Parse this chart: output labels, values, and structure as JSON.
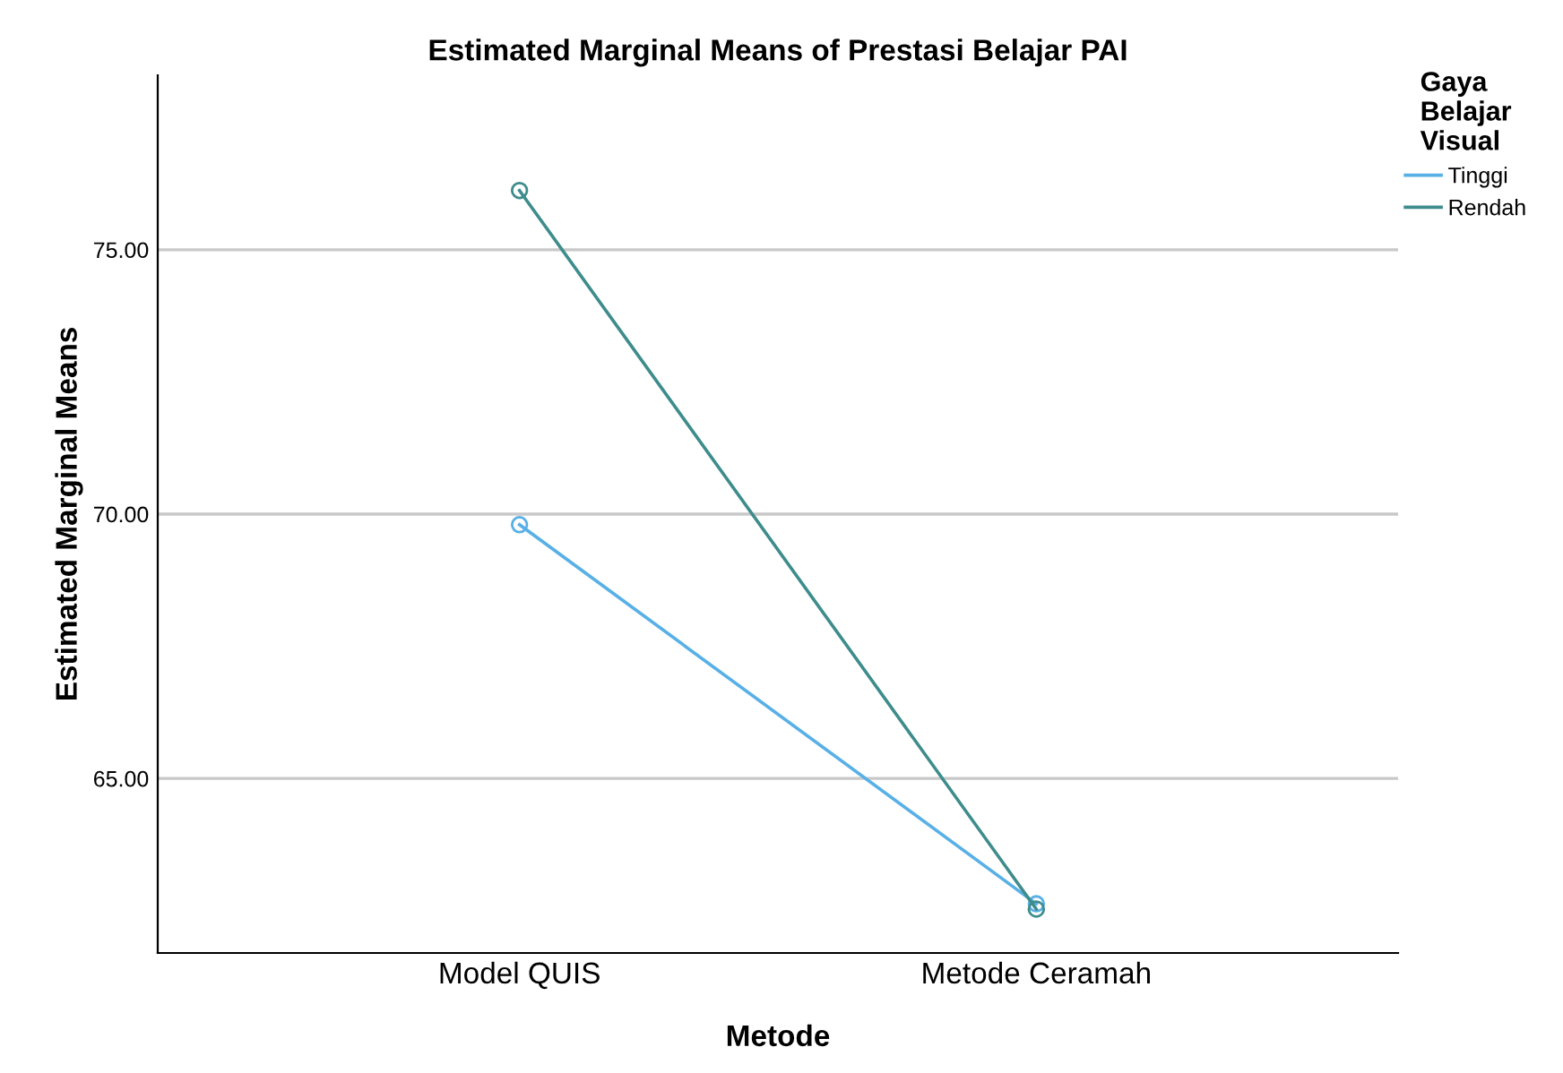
{
  "chart_data": {
    "type": "line",
    "title": "Estimated Marginal Means of Prestasi Belajar PAI",
    "xlabel": "Metode",
    "ylabel": "Estimated Marginal Means",
    "legend_title": "Gaya\nBelajar\nVisual",
    "categories": [
      "Model QUIS",
      "Metode Ceramah"
    ],
    "series": [
      {
        "name": "Tinggi",
        "color": "#58b0e6",
        "values": [
          69.8,
          62.63
        ]
      },
      {
        "name": "Rendah",
        "color": "#3e8c8c",
        "values": [
          76.12,
          62.53
        ]
      }
    ],
    "ylim": [
      61.7,
      78.3
    ],
    "yticks": [
      {
        "value": 65,
        "label": "65.00"
      },
      {
        "value": 70,
        "label": "70.00"
      },
      {
        "value": 75,
        "label": "75.00"
      }
    ],
    "grid": "y",
    "legend": "top right",
    "marker": "circle",
    "line_style": "solid"
  }
}
